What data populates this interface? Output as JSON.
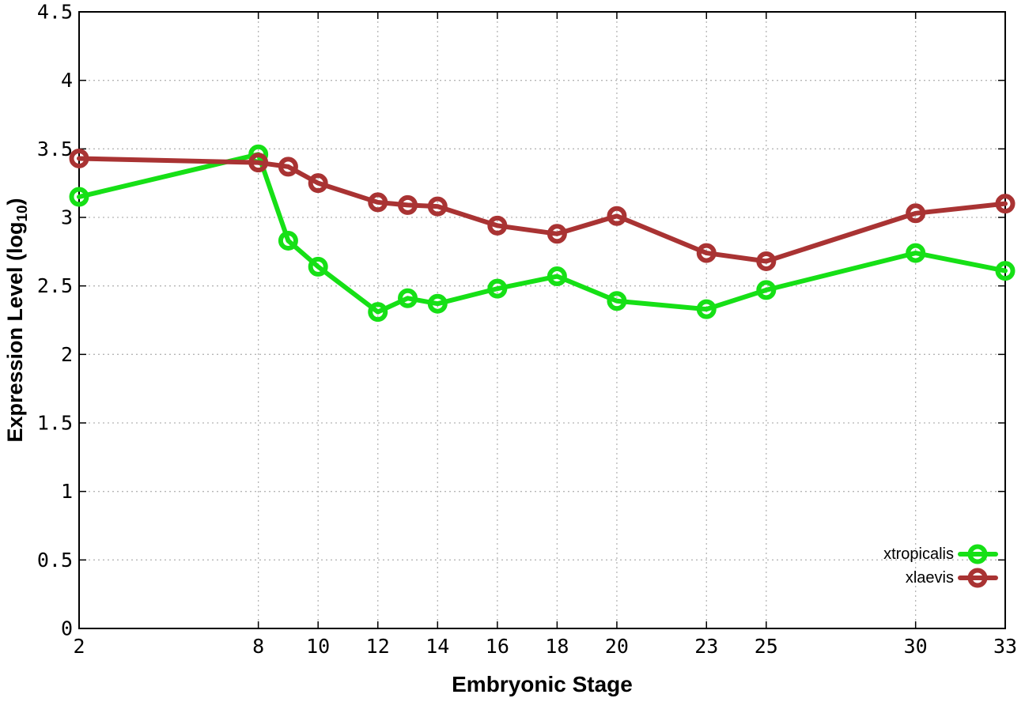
{
  "figure": {
    "xlabel": "Embryonic Stage",
    "ylabel_pre": "Expression Level (log",
    "ylabel_sub": "10",
    "ylabel_post": ")"
  },
  "chart_data": {
    "type": "line",
    "title": "",
    "xlabel": "Embryonic Stage",
    "ylabel": "Expression Level (log10)",
    "grid": true,
    "legend_position": "inside-bottom-right",
    "xlim": [
      2,
      33
    ],
    "ylim": [
      0,
      4.5
    ],
    "x_tick_values": [
      2,
      8,
      10,
      12,
      14,
      16,
      18,
      20,
      23,
      25,
      30,
      33
    ],
    "x_tick_labels": [
      "2",
      "8",
      "10",
      "12",
      "14",
      "16",
      "18",
      "20",
      "23",
      "25",
      "30",
      "33"
    ],
    "y_tick_values": [
      0,
      0.5,
      1,
      1.5,
      2,
      2.5,
      3,
      3.5,
      4,
      4.5
    ],
    "y_tick_labels": [
      "0",
      "0.5",
      "1",
      "1.5",
      "2",
      "2.5",
      "3",
      "3.5",
      "4",
      "4.5"
    ],
    "x": [
      2,
      8,
      9,
      10,
      12,
      13,
      14,
      16,
      18,
      20,
      23,
      25,
      30,
      33
    ],
    "series": [
      {
        "name": "xtropicalis",
        "color": "#16e016",
        "marker": "open-circle",
        "values": [
          3.15,
          3.46,
          2.83,
          2.64,
          2.31,
          2.41,
          2.37,
          2.48,
          2.57,
          2.39,
          2.33,
          2.47,
          2.74,
          2.61
        ]
      },
      {
        "name": "xlaevis",
        "color": "#a93333",
        "marker": "open-circle",
        "values": [
          3.43,
          3.4,
          3.37,
          3.25,
          3.11,
          3.09,
          3.08,
          2.94,
          2.88,
          3.01,
          2.74,
          2.68,
          3.03,
          3.1
        ]
      }
    ],
    "axis_color": "#000000",
    "grid_color": "#b5b5b5"
  }
}
